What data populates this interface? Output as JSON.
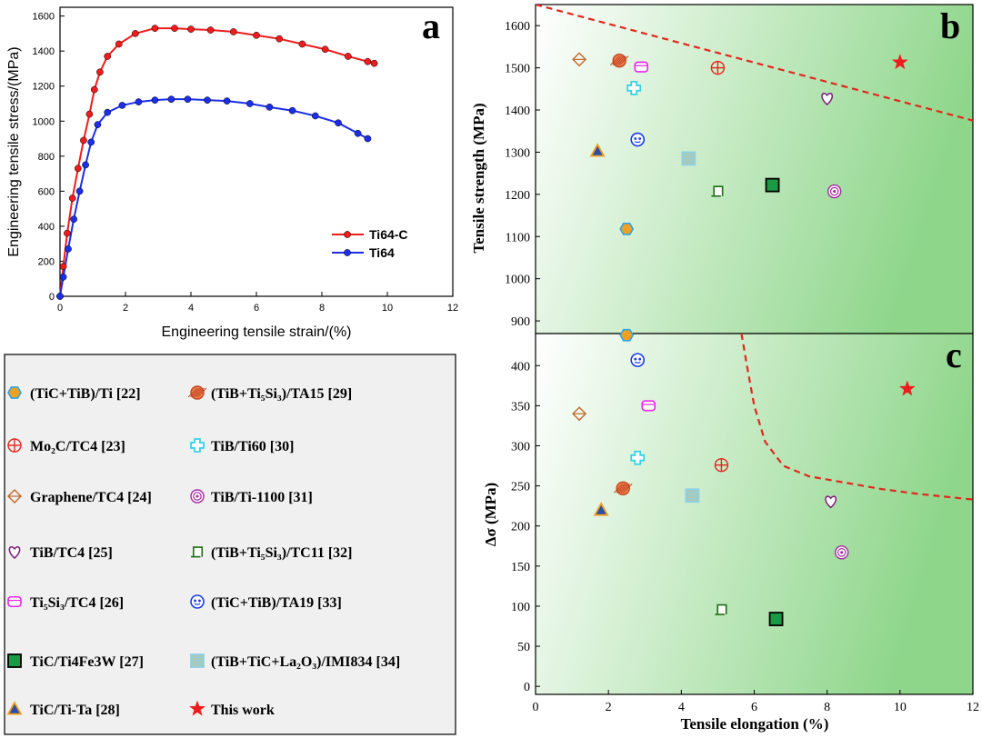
{
  "chart_data": [
    {
      "panel": "a",
      "type": "line",
      "panel_label": "a",
      "xlabel": "Engineering tensile strain/(%)",
      "ylabel": "Engineering tensile stress/(MPa)",
      "xlim": [
        0,
        12
      ],
      "ylim": [
        0,
        1650
      ],
      "xticks": [
        0,
        2,
        4,
        6,
        8,
        10,
        12
      ],
      "yticks": [
        0,
        200,
        400,
        600,
        800,
        1000,
        1200,
        1400,
        1600
      ],
      "legend_position": "middle-right",
      "series": [
        {
          "name": "Ti64-C",
          "color": "#ee1c1c",
          "x": [
            0,
            0.1,
            0.22,
            0.38,
            0.55,
            0.72,
            0.9,
            1.05,
            1.22,
            1.45,
            1.8,
            2.3,
            2.9,
            3.5,
            4.0,
            4.6,
            5.3,
            6.0,
            6.7,
            7.4,
            8.1,
            8.8,
            9.4,
            9.6
          ],
          "y": [
            0,
            170,
            360,
            560,
            730,
            890,
            1040,
            1180,
            1280,
            1370,
            1440,
            1500,
            1530,
            1530,
            1525,
            1520,
            1510,
            1490,
            1470,
            1440,
            1410,
            1370,
            1340,
            1330
          ]
        },
        {
          "name": "Ti64",
          "color": "#1c2ee8",
          "x": [
            0,
            0.1,
            0.25,
            0.42,
            0.6,
            0.78,
            0.95,
            1.15,
            1.45,
            1.9,
            2.4,
            2.9,
            3.4,
            3.9,
            4.5,
            5.1,
            5.8,
            6.4,
            7.1,
            7.8,
            8.5,
            9.1,
            9.4
          ],
          "y": [
            0,
            110,
            270,
            440,
            600,
            750,
            880,
            980,
            1050,
            1090,
            1110,
            1120,
            1125,
            1125,
            1120,
            1115,
            1100,
            1080,
            1060,
            1030,
            990,
            930,
            900
          ]
        }
      ]
    },
    {
      "panel": "b",
      "type": "scatter",
      "panel_label": "b",
      "xlabel": "Tensile elongation (%)",
      "ylabel": "Tensile strength (MPa)",
      "xlim": [
        0,
        12
      ],
      "ylim": [
        870,
        1650
      ],
      "yticks": [
        900,
        1000,
        1100,
        1200,
        1300,
        1400,
        1500,
        1600
      ],
      "boundary_line": {
        "style": "dashed",
        "color": "#e3271d",
        "x": [
          0,
          12
        ],
        "y": [
          1650,
          1375
        ]
      },
      "points": [
        {
          "key": "tictib_ti",
          "x": 2.5,
          "y": 1118
        },
        {
          "key": "tib_ti5si3_ta15",
          "x": 2.3,
          "y": 1517
        },
        {
          "key": "mo2c_tc4",
          "x": 5.0,
          "y": 1500
        },
        {
          "key": "tib_ti60",
          "x": 2.7,
          "y": 1452
        },
        {
          "key": "graphene_tc4",
          "x": 1.2,
          "y": 1520
        },
        {
          "key": "tib_ti1100",
          "x": 8.2,
          "y": 1207
        },
        {
          "key": "tib_tc4",
          "x": 8.0,
          "y": 1428
        },
        {
          "key": "tib_ti5si3_tc11",
          "x": 5.0,
          "y": 1208
        },
        {
          "key": "ti5si3_tc4",
          "x": 2.9,
          "y": 1502
        },
        {
          "key": "tictib_ta19",
          "x": 2.8,
          "y": 1330
        },
        {
          "key": "tic_ti4fe3w",
          "x": 6.5,
          "y": 1222
        },
        {
          "key": "tibticla2o3_imi834",
          "x": 4.2,
          "y": 1285
        },
        {
          "key": "tic_tita",
          "x": 1.7,
          "y": 1303
        },
        {
          "key": "this_work",
          "x": 10.0,
          "y": 1513
        }
      ]
    },
    {
      "panel": "c",
      "type": "scatter",
      "panel_label": "c",
      "xlabel": "Tensile elongation (%)",
      "ylabel": "Δσ (MPa)",
      "xlim": [
        0,
        12
      ],
      "ylim": [
        -10,
        440
      ],
      "xticks": [
        0,
        2,
        4,
        6,
        8,
        10,
        12
      ],
      "yticks": [
        0,
        50,
        100,
        150,
        200,
        250,
        300,
        350,
        400
      ],
      "boundary_line": {
        "style": "dashed",
        "color": "#e3271d",
        "x": [
          5.65,
          5.8,
          6.0,
          6.3,
          6.8,
          7.5,
          8.5,
          9.5,
          10.5,
          12
        ],
        "y": [
          440,
          400,
          350,
          305,
          275,
          262,
          254,
          246,
          240,
          233
        ]
      },
      "points": [
        {
          "key": "tictib_ti",
          "x": 2.5,
          "y": 438
        },
        {
          "key": "tib_ti5si3_ta15",
          "x": 2.4,
          "y": 247
        },
        {
          "key": "mo2c_tc4",
          "x": 5.1,
          "y": 276
        },
        {
          "key": "tib_ti60",
          "x": 2.8,
          "y": 285
        },
        {
          "key": "graphene_tc4",
          "x": 1.2,
          "y": 340
        },
        {
          "key": "tib_ti1100",
          "x": 8.4,
          "y": 167
        },
        {
          "key": "tib_tc4",
          "x": 8.1,
          "y": 231
        },
        {
          "key": "tib_ti5si3_tc11",
          "x": 5.1,
          "y": 96
        },
        {
          "key": "ti5si3_tc4",
          "x": 3.1,
          "y": 350
        },
        {
          "key": "tictib_ta19",
          "x": 2.8,
          "y": 407
        },
        {
          "key": "tic_ti4fe3w",
          "x": 6.6,
          "y": 84
        },
        {
          "key": "tibticla2o3_imi834",
          "x": 4.3,
          "y": 238
        },
        {
          "key": "tic_tita",
          "x": 1.8,
          "y": 220
        },
        {
          "key": "this_work",
          "x": 10.2,
          "y": 371
        }
      ]
    }
  ],
  "legend": {
    "left_column": [
      {
        "key": "tictib_ti",
        "label": "(TiC+TiB)/Ti [22]",
        "color": "#2fa4e7"
      },
      {
        "key": "mo2c_tc4",
        "label": "Mo₂C/TC4 [23]",
        "color": "#e3271d"
      },
      {
        "key": "graphene_tc4",
        "label": "Graphene/TC4 [24]",
        "color": "#c0682b"
      },
      {
        "key": "tib_tc4",
        "label": "TiB/TC4 [25]",
        "color": "#7a1f7a"
      },
      {
        "key": "ti5si3_tc4",
        "label": "Ti₅Si₃/TC4 [26]",
        "color": "#ee22ee"
      },
      {
        "key": "tic_ti4fe3w",
        "label": "TiC/Ti4Fe3W [27]",
        "color": "#1a9a45"
      },
      {
        "key": "tic_tita",
        "label": "TiC/Ti-Ta [28]",
        "color": "#f0a020"
      }
    ],
    "right_column": [
      {
        "key": "tib_ti5si3_ta15",
        "label": "(TiB+Ti₅Si₃)/TA15 [29]",
        "color": "#c0441f"
      },
      {
        "key": "tib_ti60",
        "label": "TiB/Ti60 [30]",
        "color": "#34d3e8"
      },
      {
        "key": "tib_ti1100",
        "label": "TiB/Ti-1100 [31]",
        "color": "#a02aa0"
      },
      {
        "key": "tib_ti5si3_tc11",
        "label": "(TiB+Ti₅Si₃)/TC11 [32]",
        "color": "#1c6e12"
      },
      {
        "key": "tictib_ta19",
        "label": "(TiC+TiB)/TA19 [33]",
        "color": "#1c3ae8"
      },
      {
        "key": "tibticla2o3_imi834",
        "label": "(TiB+TiC+La₂O₃)/IMI834 [34]",
        "color": "#8ed0e8"
      },
      {
        "key": "this_work",
        "label": "This work",
        "color": "#ee1c1c"
      }
    ]
  }
}
